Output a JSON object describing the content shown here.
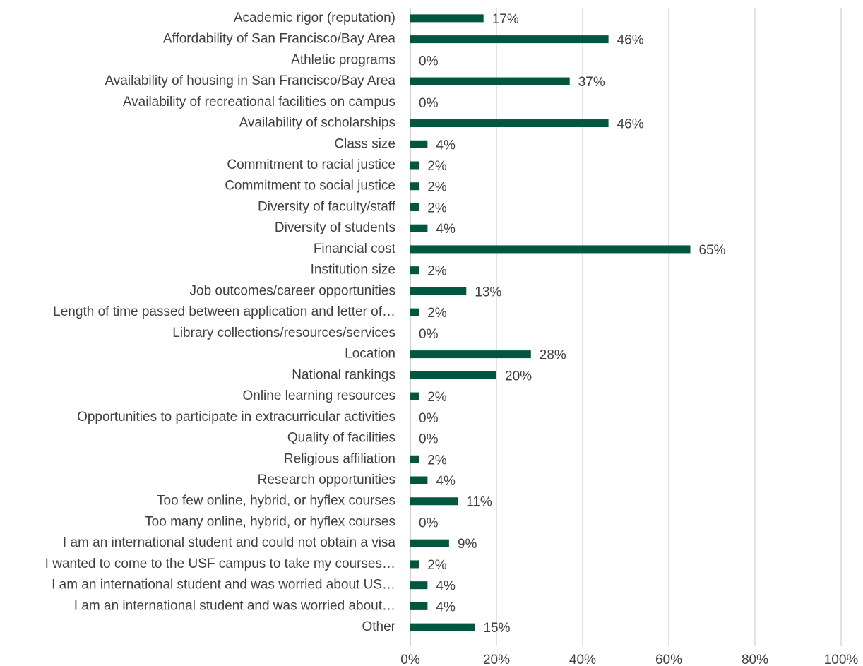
{
  "chart_data": {
    "type": "barh",
    "categories": [
      "Academic rigor (reputation)",
      "Affordability of San Francisco/Bay Area",
      "Athletic programs",
      "Availability of housing in San Francisco/Bay Area",
      "Availability of recreational facilities on campus",
      "Availability of scholarships",
      "Class size",
      "Commitment to racial justice",
      "Commitment to social justice",
      "Diversity of faculty/staff",
      "Diversity of students",
      "Financial cost",
      "Institution size",
      "Job outcomes/career opportunities",
      "Length of time passed between application and letter of…",
      "Library collections/resources/services",
      "Location",
      "National rankings",
      "Online learning resources",
      "Opportunities to participate in extracurricular activities",
      "Quality of facilities",
      "Religious affiliation",
      "Research opportunities",
      "Too few online, hybrid, or hyflex courses",
      "Too many online, hybrid, or hyflex courses",
      "I am an international student and could not obtain a visa",
      "I wanted to come to the USF campus to take my courses…",
      "I am an international student and was worried about US…",
      "I am an international student and was worried about…",
      "Other"
    ],
    "values": [
      17,
      46,
      0,
      37,
      0,
      46,
      4,
      2,
      2,
      2,
      4,
      65,
      2,
      13,
      2,
      0,
      28,
      20,
      2,
      0,
      0,
      2,
      4,
      11,
      0,
      9,
      2,
      4,
      4,
      15
    ],
    "value_labels": [
      "17%",
      "46%",
      "0%",
      "37%",
      "0%",
      "46%",
      "4%",
      "2%",
      "2%",
      "2%",
      "4%",
      "65%",
      "2%",
      "13%",
      "2%",
      "0%",
      "28%",
      "20%",
      "2%",
      "0%",
      "0%",
      "2%",
      "4%",
      "11%",
      "0%",
      "9%",
      "2%",
      "4%",
      "4%",
      "15%"
    ],
    "color": "#00573f",
    "xlim": [
      0,
      100
    ],
    "xticks": [
      {
        "value": 0,
        "label": "0%"
      },
      {
        "value": 20,
        "label": "20%"
      },
      {
        "value": 40,
        "label": "40%"
      },
      {
        "value": 60,
        "label": "60%"
      },
      {
        "value": 80,
        "label": "80%"
      },
      {
        "value": 100,
        "label": "100%"
      }
    ],
    "grid": true
  }
}
